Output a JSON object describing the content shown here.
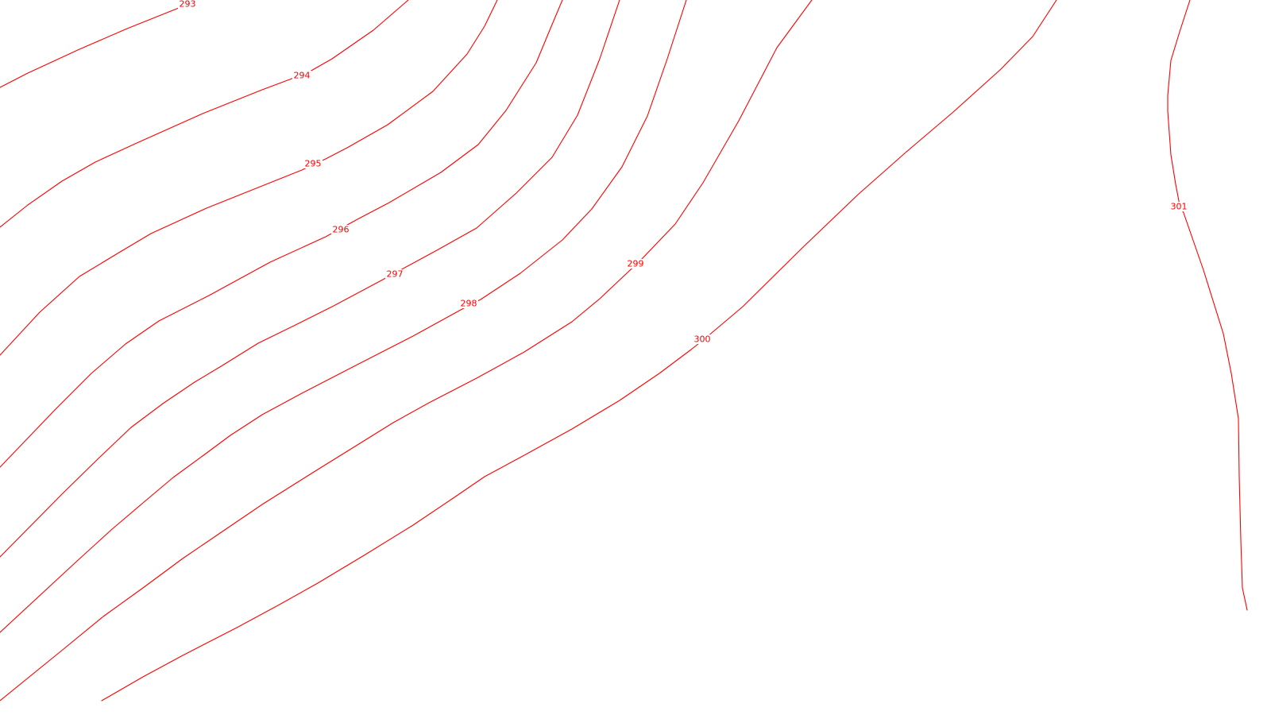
{
  "map": {
    "contour_color": "#ff0000",
    "background_color": "#ffffff",
    "contours": [
      {
        "level": "293"
      },
      {
        "level": "294"
      },
      {
        "level": "295"
      },
      {
        "level": "296"
      },
      {
        "level": "297"
      },
      {
        "level": "298"
      },
      {
        "level": "299"
      },
      {
        "level": "300"
      },
      {
        "level": "301"
      }
    ]
  }
}
